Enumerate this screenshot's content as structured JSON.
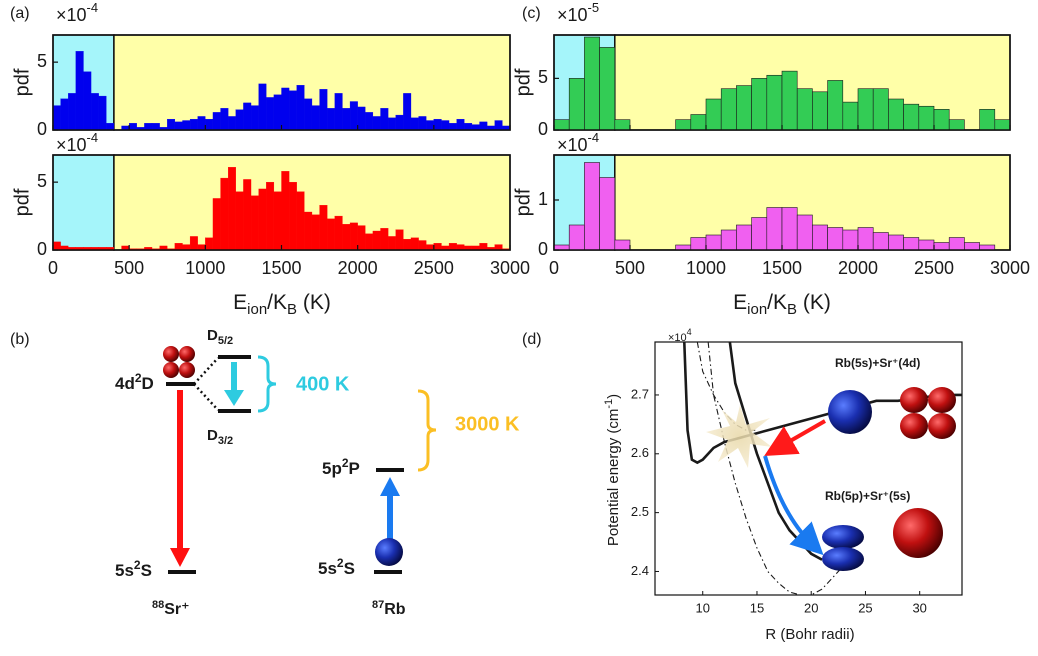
{
  "chart_data": [
    {
      "type": "histogram",
      "panel": "(a)",
      "ylabel": "pdf",
      "multiplier": [
        "×10",
        "-4"
      ],
      "color": "#0000ee",
      "bins": [
        0,
        50,
        100,
        150,
        200,
        250,
        300,
        350,
        400,
        450,
        500,
        550,
        600,
        650,
        700,
        750,
        800,
        850,
        900,
        950,
        1000,
        1050,
        1100,
        1150,
        1200,
        1250,
        1300,
        1350,
        1400,
        1450,
        1500,
        1550,
        1600,
        1650,
        1700,
        1750,
        1800,
        1850,
        1900,
        1950,
        2000,
        2050,
        2100,
        2150,
        2200,
        2250,
        2300,
        2350,
        2400,
        2450,
        2500,
        2550,
        2600,
        2650,
        2700,
        2750,
        2800,
        2850,
        2900,
        2950,
        3000
      ],
      "values": [
        1.8,
        2.3,
        2.7,
        5.8,
        4.3,
        2.7,
        2.5,
        0.5,
        0,
        0.3,
        0.5,
        0.2,
        0.5,
        0.5,
        0.2,
        0.8,
        0.6,
        0.7,
        0.8,
        1.0,
        0.8,
        1.3,
        1.6,
        1.0,
        1.5,
        2.0,
        1.8,
        3.4,
        2.4,
        2.6,
        3.1,
        2.9,
        3.3,
        2.3,
        1.8,
        3.0,
        1.6,
        2.7,
        1.6,
        2.1,
        1.7,
        1.3,
        1.0,
        1.6,
        0.9,
        1.1,
        2.7,
        0.9,
        1.0,
        0.7,
        0.8,
        0.7,
        0.5,
        0.8,
        0.5,
        0.4,
        0.6,
        0.3,
        0.7,
        0.3
      ],
      "shade": [
        {
          "x": [
            0,
            400
          ],
          "color": "#a5f5fa"
        },
        {
          "x": [
            400,
            3000
          ],
          "color": "#ffffa8"
        }
      ],
      "xlim": [
        0,
        3000
      ],
      "xticks": [
        0,
        500,
        1000,
        1500,
        2000,
        2500,
        3000
      ],
      "ylim": [
        0,
        7
      ],
      "yticks": [
        0,
        5
      ]
    },
    {
      "type": "histogram",
      "ylabel": "pdf",
      "multiplier": [
        "×10",
        "-4"
      ],
      "xlabel": [
        "E",
        "ion",
        "/K",
        "B",
        " (K)"
      ],
      "color": "#ff0000",
      "bins": [
        0,
        50,
        100,
        150,
        200,
        250,
        300,
        350,
        400,
        450,
        500,
        550,
        600,
        650,
        700,
        750,
        800,
        850,
        900,
        950,
        1000,
        1050,
        1100,
        1150,
        1200,
        1250,
        1300,
        1350,
        1400,
        1450,
        1500,
        1550,
        1600,
        1650,
        1700,
        1750,
        1800,
        1850,
        1900,
        1950,
        2000,
        2050,
        2100,
        2150,
        2200,
        2250,
        2300,
        2350,
        2400,
        2450,
        2500,
        2550,
        2600,
        2650,
        2700,
        2750,
        2800,
        2850,
        2900,
        2950,
        3000
      ],
      "values": [
        0.6,
        0.3,
        0.2,
        0.2,
        0.2,
        0.2,
        0.2,
        0.2,
        0,
        0.3,
        0.1,
        0.1,
        0.2,
        0.1,
        0.3,
        0.1,
        0.5,
        0.4,
        1.0,
        0.4,
        0.9,
        3.8,
        5.3,
        6.1,
        4.3,
        5.2,
        4.0,
        4.5,
        5.0,
        4.3,
        5.8,
        5.0,
        4.3,
        2.8,
        2.6,
        3.3,
        2.3,
        2.5,
        1.9,
        2.0,
        1.8,
        1.2,
        1.4,
        1.6,
        1.0,
        1.5,
        0.8,
        0.9,
        0.7,
        0.4,
        0.5,
        0.3,
        0.5,
        0.4,
        0.3,
        0.3,
        0.5,
        0.2,
        0.4,
        0.1
      ],
      "shade": [
        {
          "x": [
            0,
            400
          ],
          "color": "#a5f5fa"
        },
        {
          "x": [
            400,
            3000
          ],
          "color": "#ffffa8"
        }
      ],
      "xlim": [
        0,
        3000
      ],
      "xticks": [
        0,
        500,
        1000,
        1500,
        2000,
        2500,
        3000
      ],
      "ylim": [
        0,
        7
      ],
      "yticks": [
        0,
        5
      ]
    },
    {
      "type": "histogram",
      "panel": "(c)",
      "ylabel": "pdf",
      "multiplier": [
        "×10",
        "-5"
      ],
      "color": "#33cc55",
      "edgecolor": "#1a1a1a",
      "bins": [
        0,
        100,
        200,
        300,
        400,
        500,
        600,
        700,
        800,
        900,
        1000,
        1100,
        1200,
        1300,
        1400,
        1500,
        1600,
        1700,
        1800,
        1900,
        2000,
        2100,
        2200,
        2300,
        2400,
        2500,
        2600,
        2700,
        2800,
        2900,
        3000
      ],
      "values": [
        1.0,
        5.0,
        9.0,
        8.0,
        1.0,
        0,
        0,
        0,
        1.0,
        1.5,
        3.0,
        4.0,
        4.3,
        5.0,
        5.3,
        5.7,
        4.0,
        3.7,
        4.8,
        2.7,
        4.0,
        4.0,
        3.0,
        2.5,
        2.3,
        2.0,
        1.0,
        0,
        2.0,
        1.0
      ],
      "shade": [
        {
          "x": [
            0,
            400
          ],
          "color": "#a5f5fa"
        },
        {
          "x": [
            400,
            3000
          ],
          "color": "#ffffa8"
        }
      ],
      "xlim": [
        0,
        3000
      ],
      "xticks": [
        0,
        500,
        1000,
        1500,
        2000,
        2500,
        3000
      ],
      "ylim": [
        0,
        9.2
      ],
      "yticks": [
        0,
        5
      ]
    },
    {
      "type": "histogram",
      "ylabel": "pdf",
      "multiplier": [
        "×10",
        "-4"
      ],
      "xlabel": [
        "E",
        "ion",
        "/K",
        "B",
        " (K)"
      ],
      "color": "#f060f0",
      "edgecolor": "#1a1a1a",
      "bins": [
        0,
        100,
        200,
        300,
        400,
        500,
        600,
        700,
        800,
        900,
        1000,
        1100,
        1200,
        1300,
        1400,
        1500,
        1600,
        1700,
        1800,
        1900,
        2000,
        2100,
        2200,
        2300,
        2400,
        2500,
        2600,
        2700,
        2800,
        2900,
        3000
      ],
      "values": [
        0.1,
        0.5,
        1.75,
        1.45,
        0.2,
        0,
        0,
        0,
        0.1,
        0.25,
        0.3,
        0.4,
        0.5,
        0.65,
        0.85,
        0.85,
        0.7,
        0.5,
        0.45,
        0.4,
        0.45,
        0.35,
        0.3,
        0.25,
        0.2,
        0.15,
        0.25,
        0.15,
        0.1,
        0
      ],
      "shade": [
        {
          "x": [
            0,
            400
          ],
          "color": "#a5f5fa"
        },
        {
          "x": [
            400,
            3000
          ],
          "color": "#ffffa8"
        }
      ],
      "xlim": [
        0,
        3000
      ],
      "xticks": [
        0,
        500,
        1000,
        1500,
        2000,
        2500,
        3000
      ],
      "ylim": [
        0,
        1.9
      ],
      "yticks": [
        0,
        1
      ]
    },
    {
      "type": "line",
      "panel": "(d)",
      "multiplier": [
        "×10",
        "4"
      ],
      "ylabel": [
        "Potential energy (cm",
        "-1",
        ")"
      ],
      "xlabel": "R (Bohr radii)",
      "annotations": [
        "Rb(5s)+Sr⁺(4d)",
        "Rb(5p)+Sr⁺(5s)"
      ],
      "xlim": [
        5.6,
        33.9
      ],
      "xticks": [
        10,
        15,
        20,
        25,
        30
      ],
      "ylim": [
        2.36,
        2.79
      ],
      "yticks": [
        2.4,
        2.5,
        2.6,
        2.7
      ],
      "series": [
        {
          "color": "#1a1a1a",
          "style": "solid",
          "x": [
            8.3,
            8.6,
            9,
            9.5,
            10,
            11,
            12,
            13,
            14,
            15,
            16,
            18,
            20,
            22,
            24,
            26,
            28,
            30,
            32,
            34
          ],
          "values": [
            2.79,
            2.64,
            2.59,
            2.585,
            2.59,
            2.61,
            2.62,
            2.625,
            2.63,
            2.635,
            2.64,
            2.65,
            2.66,
            2.67,
            2.68,
            2.69,
            2.69,
            2.695,
            2.7,
            2.7
          ]
        },
        {
          "color": "#1a1a1a",
          "style": "solid",
          "x": [
            12.5,
            13,
            14,
            15,
            16,
            17,
            18,
            19,
            20,
            21
          ],
          "values": [
            2.79,
            2.72,
            2.66,
            2.6,
            2.55,
            2.5,
            2.47,
            2.45,
            2.43,
            2.42
          ]
        },
        {
          "color": "#1a1a1a",
          "style": "dash-dot",
          "x": [
            10.5,
            11,
            12,
            13,
            14,
            15,
            16,
            17,
            18,
            19,
            19.5,
            20,
            21,
            22,
            23,
            24
          ],
          "values": [
            2.79,
            2.7,
            2.62,
            2.55,
            2.49,
            2.44,
            2.4,
            2.38,
            2.365,
            2.36,
            2.358,
            2.36,
            2.37,
            2.39,
            2.41,
            2.43
          ]
        },
        {
          "color": "#1a1a1a",
          "style": "dash-dot",
          "x": [
            9.5,
            10,
            11,
            12,
            13,
            14,
            15
          ],
          "values": [
            2.79,
            2.74,
            2.7,
            2.67,
            2.65,
            2.64,
            2.64
          ]
        }
      ]
    }
  ],
  "diagram": {
    "panel": "(b)",
    "sr_upper": [
      "4d",
      "2",
      "D"
    ],
    "sr_d52": [
      "D",
      "5/2"
    ],
    "sr_d32": [
      "D",
      "3/2"
    ],
    "sr_ground": [
      "5s",
      "2",
      "S"
    ],
    "sr_species": [
      "88",
      "Sr⁺"
    ],
    "splitting_label": "400 K",
    "rb_upper": [
      "5p",
      "2",
      "P"
    ],
    "rb_ground": [
      "5s",
      "2",
      "S"
    ],
    "rb_species": [
      "87",
      "Rb"
    ],
    "range_label": "3000 K"
  }
}
